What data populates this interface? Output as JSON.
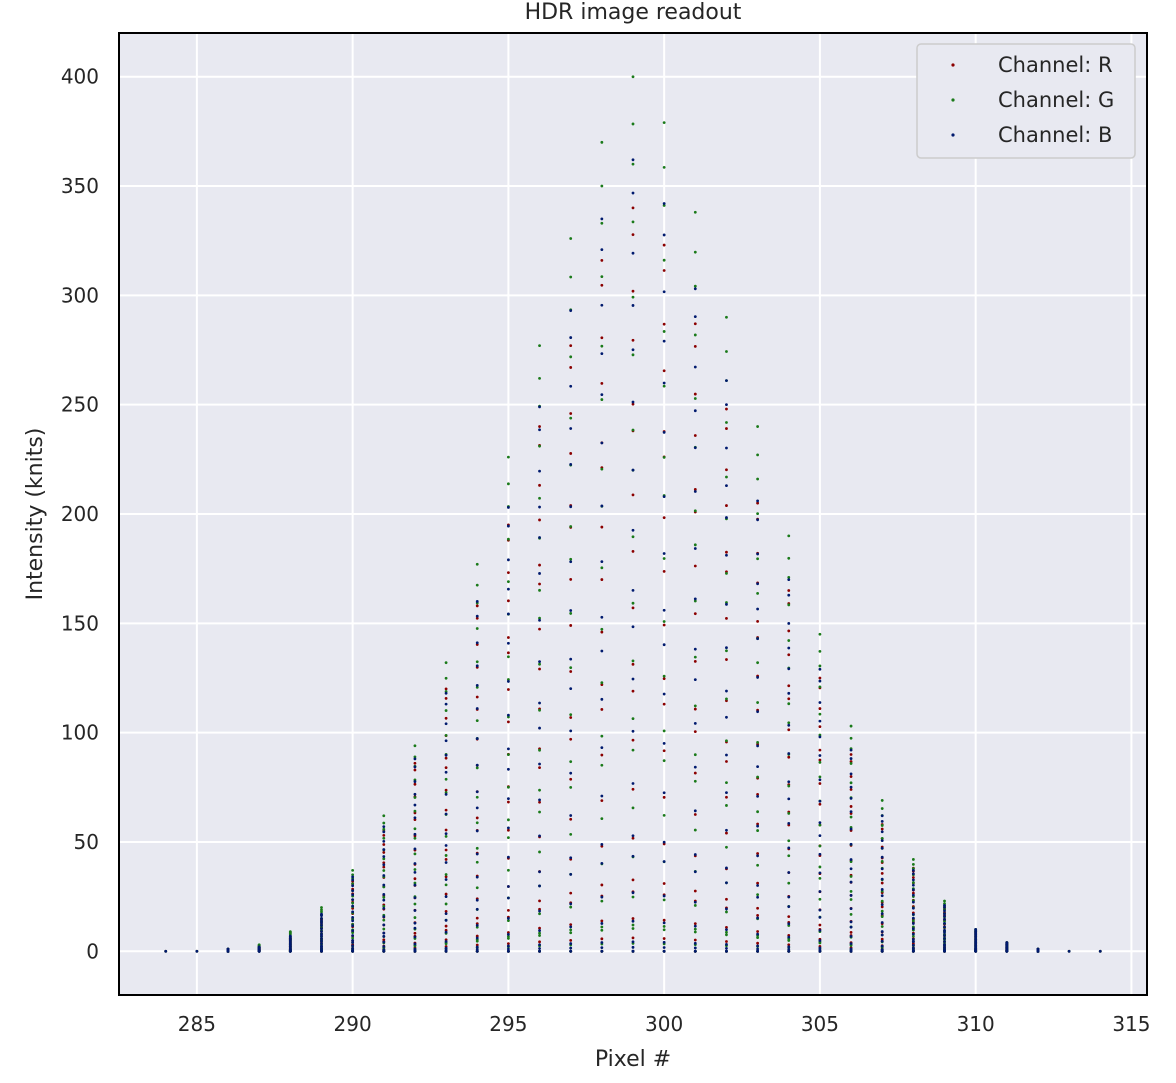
{
  "chart_data": {
    "type": "scatter",
    "title": "HDR image readout",
    "xlabel": "Pixel #",
    "ylabel": "Intensity (knits)",
    "xlim": [
      282.5,
      315.5
    ],
    "ylim": [
      -20,
      420
    ],
    "xticks": [
      285,
      290,
      295,
      300,
      305,
      310,
      315
    ],
    "yticks": [
      0,
      50,
      100,
      150,
      200,
      250,
      300,
      350,
      400
    ],
    "grid": true,
    "legend_position": "top-right",
    "x": [
      284,
      285,
      286,
      287,
      288,
      289,
      290,
      291,
      292,
      293,
      294,
      295,
      296,
      297,
      298,
      299,
      300,
      301,
      302,
      303,
      304,
      305,
      306,
      307,
      308,
      309,
      310,
      311,
      312,
      313,
      314
    ],
    "series": [
      {
        "name": "Channel: R",
        "color": "#8b0000",
        "peak_values": [
          0,
          0,
          1,
          2,
          6,
          15,
          32,
          55,
          86,
          120,
          158,
          195,
          240,
          277,
          316,
          340,
          323,
          287,
          248,
          205,
          165,
          125,
          90,
          58,
          38,
          20,
          9,
          4,
          1,
          0,
          0
        ]
      },
      {
        "name": "Channel: G",
        "color": "#1a7a1a",
        "peak_values": [
          0,
          0,
          1,
          3,
          9,
          20,
          37,
          62,
          94,
          132,
          177,
          226,
          277,
          326,
          370,
          400,
          379,
          338,
          290,
          240,
          190,
          145,
          103,
          69,
          42,
          23,
          10,
          4,
          1,
          0,
          0
        ]
      },
      {
        "name": "Channel: B",
        "color": "#001a6e",
        "peak_values": [
          0,
          0,
          1,
          2,
          7,
          17,
          34,
          57,
          88,
          118,
          160,
          203,
          249,
          293,
          335,
          362,
          342,
          303,
          261,
          206,
          170,
          129,
          92,
          62,
          37,
          21,
          10,
          4,
          1,
          0,
          0
        ]
      }
    ]
  }
}
